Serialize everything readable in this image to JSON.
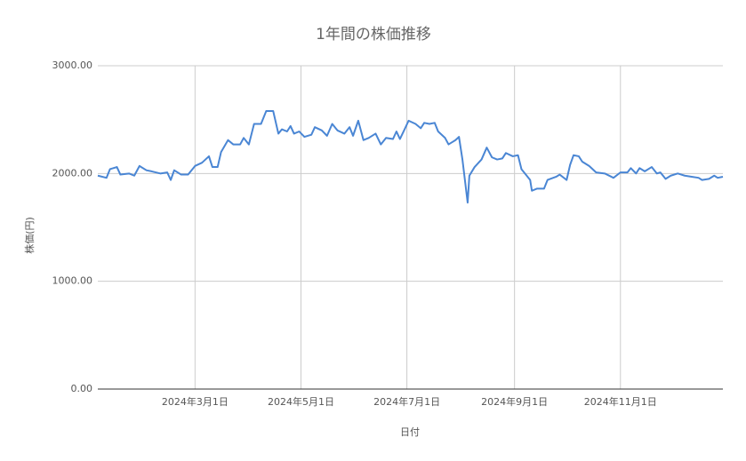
{
  "chart_data": {
    "type": "line",
    "title": "1年間の株価推移",
    "x_label": "日付",
    "y_label": "株価(円)",
    "x": [
      "2024-01-05",
      "2024-01-10",
      "2024-01-12",
      "2024-01-16",
      "2024-01-18",
      "2024-01-23",
      "2024-01-26",
      "2024-01-29",
      "2024-02-02",
      "2024-02-05",
      "2024-02-10",
      "2024-02-14",
      "2024-02-16",
      "2024-02-18",
      "2024-02-22",
      "2024-02-26",
      "2024-03-01",
      "2024-03-05",
      "2024-03-09",
      "2024-03-11",
      "2024-03-14",
      "2024-03-16",
      "2024-03-20",
      "2024-03-23",
      "2024-03-27",
      "2024-03-29",
      "2024-04-01",
      "2024-04-04",
      "2024-04-08",
      "2024-04-11",
      "2024-04-15",
      "2024-04-18",
      "2024-04-20",
      "2024-04-23",
      "2024-04-25",
      "2024-04-27",
      "2024-04-30",
      "2024-05-03",
      "2024-05-07",
      "2024-05-09",
      "2024-05-13",
      "2024-05-16",
      "2024-05-19",
      "2024-05-22",
      "2024-05-26",
      "2024-05-29",
      "2024-05-31",
      "2024-06-03",
      "2024-06-06",
      "2024-06-09",
      "2024-06-13",
      "2024-06-16",
      "2024-06-19",
      "2024-06-23",
      "2024-06-25",
      "2024-06-27",
      "2024-06-30",
      "2024-07-02",
      "2024-07-06",
      "2024-07-09",
      "2024-07-11",
      "2024-07-14",
      "2024-07-17",
      "2024-07-19",
      "2024-07-23",
      "2024-07-25",
      "2024-07-29",
      "2024-07-31",
      "2024-08-02",
      "2024-08-05",
      "2024-08-06",
      "2024-08-09",
      "2024-08-13",
      "2024-08-16",
      "2024-08-19",
      "2024-08-22",
      "2024-08-25",
      "2024-08-27",
      "2024-08-31",
      "2024-09-03",
      "2024-09-05",
      "2024-09-08",
      "2024-09-10",
      "2024-09-11",
      "2024-09-14",
      "2024-09-18",
      "2024-09-20",
      "2024-09-25",
      "2024-09-27",
      "2024-10-01",
      "2024-10-03",
      "2024-10-05",
      "2024-10-08",
      "2024-10-10",
      "2024-10-14",
      "2024-10-18",
      "2024-10-23",
      "2024-10-28",
      "2024-11-01",
      "2024-11-05",
      "2024-11-07",
      "2024-11-10",
      "2024-11-12",
      "2024-11-15",
      "2024-11-19",
      "2024-11-22",
      "2024-11-24",
      "2024-11-27",
      "2024-11-30",
      "2024-12-04",
      "2024-12-08",
      "2024-12-12",
      "2024-12-16",
      "2024-12-18",
      "2024-12-22",
      "2024-12-25",
      "2024-12-27",
      "2024-12-30"
    ],
    "series": [
      {
        "name": "株価",
        "color": "#4a86d4",
        "values": [
          1980,
          1960,
          2040,
          2060,
          1990,
          2000,
          1980,
          2070,
          2030,
          2020,
          2000,
          2010,
          1940,
          2030,
          1990,
          1990,
          2070,
          2100,
          2160,
          2060,
          2060,
          2200,
          2310,
          2270,
          2270,
          2330,
          2270,
          2460,
          2460,
          2580,
          2580,
          2370,
          2410,
          2390,
          2440,
          2370,
          2390,
          2340,
          2360,
          2430,
          2400,
          2350,
          2460,
          2400,
          2370,
          2430,
          2350,
          2490,
          2310,
          2330,
          2370,
          2270,
          2330,
          2320,
          2390,
          2320,
          2420,
          2490,
          2460,
          2420,
          2470,
          2460,
          2470,
          2390,
          2330,
          2270,
          2310,
          2340,
          2130,
          1730,
          1980,
          2060,
          2130,
          2240,
          2150,
          2130,
          2140,
          2190,
          2160,
          2170,
          2040,
          1980,
          1940,
          1840,
          1860,
          1860,
          1940,
          1970,
          1990,
          1940,
          2080,
          2170,
          2160,
          2110,
          2070,
          2010,
          2000,
          1960,
          2010,
          2010,
          2050,
          2000,
          2050,
          2020,
          2060,
          2000,
          2010,
          1950,
          1980,
          2000,
          1980,
          1970,
          1960,
          1940,
          1950,
          1980,
          1960,
          1970
        ]
      }
    ],
    "xlim": [
      "2024-01-05",
      "2024-12-30"
    ],
    "xticks": [
      {
        "value": "2024-03-01",
        "label": "2024年3月1日"
      },
      {
        "value": "2024-05-01",
        "label": "2024年5月1日"
      },
      {
        "value": "2024-07-01",
        "label": "2024年7月1日"
      },
      {
        "value": "2024-09-01",
        "label": "2024年9月1日"
      },
      {
        "value": "2024-11-01",
        "label": "2024年11月1日"
      }
    ],
    "ylim": [
      0,
      3000
    ],
    "yticks": [
      {
        "value": 0,
        "label": "0.00"
      },
      {
        "value": 1000,
        "label": "1000.00"
      },
      {
        "value": 2000,
        "label": "2000.00"
      },
      {
        "value": 3000,
        "label": "3000.00"
      }
    ],
    "grid": true
  }
}
